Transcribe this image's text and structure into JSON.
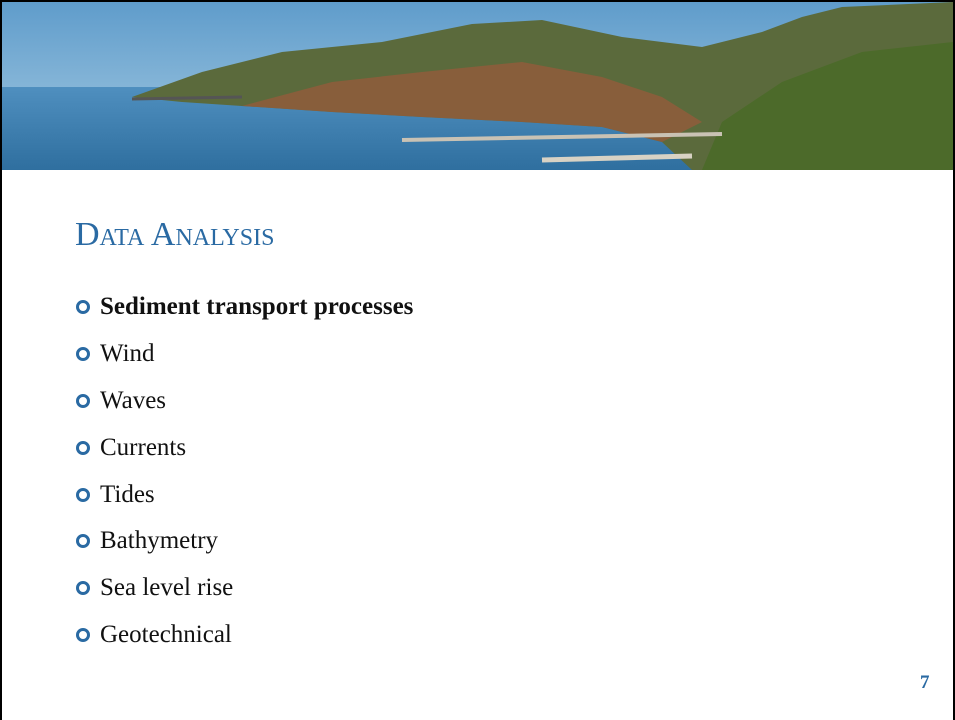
{
  "slide": {
    "title": "Data Analysis",
    "bullets": [
      {
        "text": "Sediment transport processes",
        "bold": true
      },
      {
        "text": "Wind",
        "bold": false
      },
      {
        "text": "Waves",
        "bold": false
      },
      {
        "text": "Currents",
        "bold": false
      },
      {
        "text": "Tides",
        "bold": false
      },
      {
        "text": "Bathymetry",
        "bold": false
      },
      {
        "text": "Sea level rise",
        "bold": false
      },
      {
        "text": "Geotechnical",
        "bold": false
      }
    ],
    "page_number": "7"
  }
}
